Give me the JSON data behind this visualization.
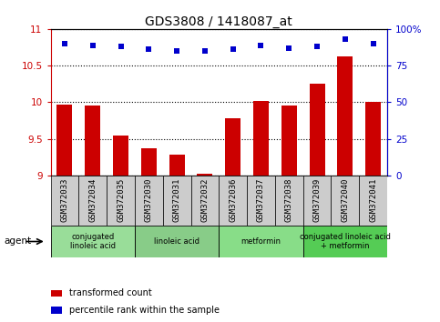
{
  "title": "GDS3808 / 1418087_at",
  "samples": [
    "GSM372033",
    "GSM372034",
    "GSM372035",
    "GSM372030",
    "GSM372031",
    "GSM372032",
    "GSM372036",
    "GSM372037",
    "GSM372038",
    "GSM372039",
    "GSM372040",
    "GSM372041"
  ],
  "red_values": [
    9.97,
    9.96,
    9.54,
    9.37,
    9.29,
    9.03,
    9.78,
    10.02,
    9.96,
    10.25,
    10.63,
    10.01
  ],
  "blue_values": [
    90,
    89,
    88,
    86,
    85,
    85,
    86,
    89,
    87,
    88,
    93,
    90
  ],
  "ylim_left": [
    9.0,
    11.0
  ],
  "ylim_right": [
    0,
    100
  ],
  "yticks_left": [
    9.0,
    9.5,
    10.0,
    10.5,
    11.0
  ],
  "yticks_right": [
    0,
    25,
    50,
    75,
    100
  ],
  "ytick_labels_right": [
    "0",
    "25",
    "50",
    "75",
    "100%"
  ],
  "bar_color": "#cc0000",
  "dot_color": "#0000cc",
  "background_color": "#ffffff",
  "plot_bg_color": "#ffffff",
  "sample_bg_color": "#cccccc",
  "agent_groups": [
    {
      "label": "conjugated\nlinoleic acid",
      "start": 0,
      "end": 3,
      "color": "#99dd99"
    },
    {
      "label": "linoleic acid",
      "start": 3,
      "end": 6,
      "color": "#88cc88"
    },
    {
      "label": "metformin",
      "start": 6,
      "end": 9,
      "color": "#88dd88"
    },
    {
      "label": "conjugated linoleic acid\n+ metformin",
      "start": 9,
      "end": 12,
      "color": "#55cc55"
    }
  ],
  "legend_items": [
    {
      "color": "#cc0000",
      "label": "transformed count"
    },
    {
      "color": "#0000cc",
      "label": "percentile rank within the sample"
    }
  ],
  "bar_bottom": 9.0,
  "agent_label": "agent",
  "tick_color_left": "#cc0000",
  "tick_color_right": "#0000cc"
}
